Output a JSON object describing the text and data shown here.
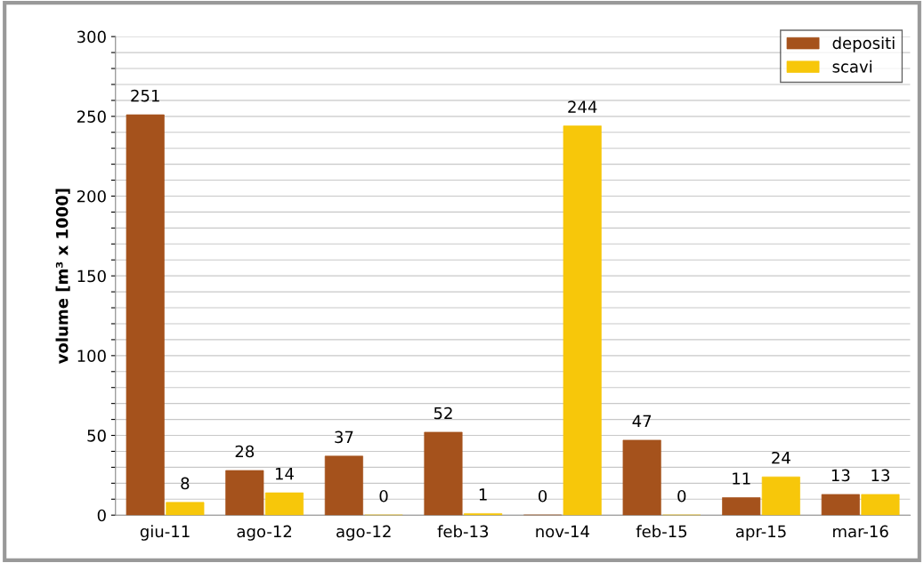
{
  "chart_data": {
    "type": "bar",
    "ylabel": "volume [m³ x 1000]",
    "categories": [
      "giu-11",
      "ago-12",
      "ago-12",
      "feb-13",
      "nov-14",
      "feb-15",
      "apr-15",
      "mar-16"
    ],
    "series": [
      {
        "name": "depositi",
        "color": "#a5521c",
        "values": [
          251,
          28,
          37,
          52,
          0,
          47,
          11,
          13
        ]
      },
      {
        "name": "scavi",
        "color": "#f7c70a",
        "values": [
          8,
          14,
          0,
          1,
          244,
          0,
          24,
          13
        ]
      }
    ],
    "ylim": [
      0,
      300
    ],
    "yticks": [
      0,
      {
        "value": 10,
        "label": null
      },
      {
        "value": 20,
        "label": null
      },
      {
        "value": 30,
        "label": null
      },
      {
        "value": 40,
        "label": null
      },
      50,
      {
        "value": 60,
        "label": null
      },
      {
        "value": 70,
        "label": null
      },
      {
        "value": 80,
        "label": null
      },
      {
        "value": 90,
        "label": null
      },
      100,
      {
        "value": 110,
        "label": null
      },
      {
        "value": 120,
        "label": null
      },
      {
        "value": 130,
        "label": null
      },
      {
        "value": 140,
        "label": null
      },
      150,
      {
        "value": 160,
        "label": null
      },
      {
        "value": 170,
        "label": null
      },
      {
        "value": 180,
        "label": null
      },
      {
        "value": 190,
        "label": null
      },
      200,
      {
        "value": 210,
        "label": null
      },
      {
        "value": 220,
        "label": null
      },
      {
        "value": 230,
        "label": null
      },
      {
        "value": 240,
        "label": null
      },
      250,
      {
        "value": 260,
        "label": null
      },
      {
        "value": 270,
        "label": null
      },
      {
        "value": 280,
        "label": null
      },
      {
        "value": 290,
        "label": null
      },
      300
    ],
    "grid": "y",
    "legend": "top right",
    "data_labels": true
  }
}
